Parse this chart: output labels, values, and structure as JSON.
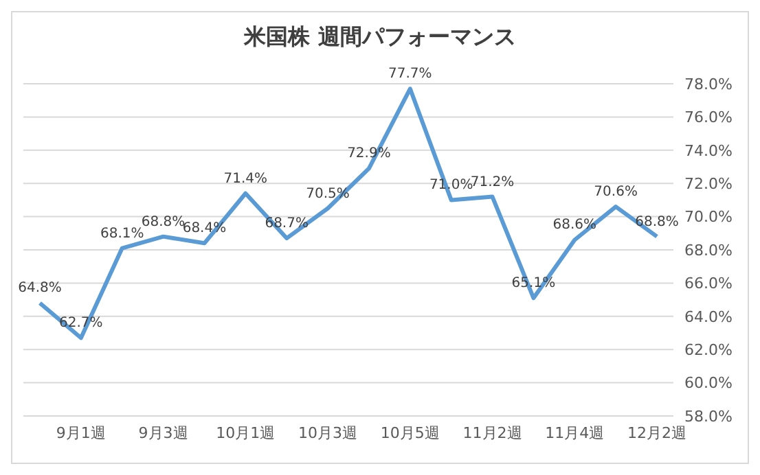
{
  "chart_data": {
    "type": "line",
    "title": "米国株 週間パフォーマンス",
    "categories": [
      null,
      "9月1週",
      null,
      "9月3週",
      null,
      "10月1週",
      null,
      "10月3週",
      null,
      "10月5週",
      null,
      "11月2週",
      null,
      "11月4週",
      null,
      "12月2週"
    ],
    "series": [
      {
        "color": "#5b9bd5",
        "values": [
          64.8,
          62.7,
          68.1,
          68.8,
          68.4,
          71.4,
          68.7,
          70.5,
          72.9,
          77.7,
          71.0,
          71.2,
          65.1,
          68.6,
          70.6,
          68.8
        ],
        "value_labels": [
          "64.8%",
          "62.7%",
          "68.1%",
          "68.8%",
          "68.4%",
          "71.4%",
          "68.7%",
          "70.5%",
          "72.9%",
          "77.7%",
          "71.0%",
          "71.2%",
          "65.1%",
          "68.6%",
          "70.6%",
          "68.8%"
        ]
      }
    ],
    "ylim": [
      58,
      78
    ],
    "yticks": [
      {
        "value": 58,
        "label": "58.0%"
      },
      {
        "value": 60,
        "label": "60.0%"
      },
      {
        "value": 62,
        "label": "62.0%"
      },
      {
        "value": 64,
        "label": "64.0%"
      },
      {
        "value": 66,
        "label": "66.0%"
      },
      {
        "value": 68,
        "label": "68.0%"
      },
      {
        "value": 70,
        "label": "70.0%"
      },
      {
        "value": 72,
        "label": "72.0%"
      },
      {
        "value": 74,
        "label": "74.0%"
      },
      {
        "value": 76,
        "label": "76.0%"
      },
      {
        "value": 78,
        "label": "78.0%"
      }
    ],
    "grid": "y",
    "legend": false,
    "marker": "none",
    "line_style": "solid"
  }
}
